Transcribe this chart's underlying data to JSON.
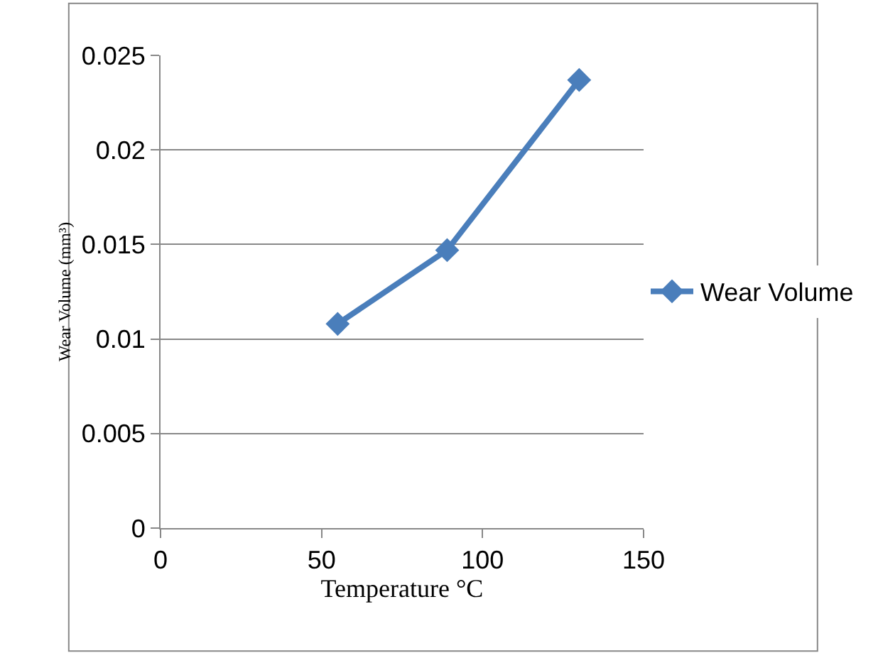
{
  "chart_data": {
    "type": "line",
    "xlabel": "Temperature °C",
    "ylabel": "Wear Volume (mm³)",
    "x": [
      55,
      89,
      130
    ],
    "series": [
      {
        "name": "Wear Volume",
        "color": "#4a7ebb",
        "values": [
          0.0108,
          0.0147,
          0.0237
        ]
      }
    ],
    "xlim": [
      0,
      150
    ],
    "xticks": [
      0,
      50,
      100,
      150
    ],
    "ylim": [
      0,
      0.025
    ],
    "yticks": [
      0,
      0.005,
      0.01,
      0.015,
      0.02,
      0.025
    ],
    "grid": "y",
    "legend": "right",
    "marker": "diamond",
    "line_style": "solid"
  }
}
